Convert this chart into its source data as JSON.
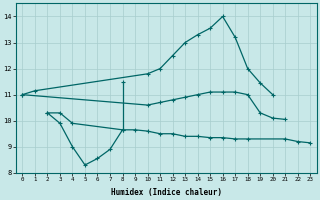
{
  "xlabel": "Humidex (Indice chaleur)",
  "x_values": [
    0,
    1,
    2,
    3,
    4,
    5,
    6,
    7,
    8,
    9,
    10,
    11,
    12,
    13,
    14,
    15,
    16,
    17,
    18,
    19,
    20,
    21,
    22,
    23
  ],
  "line1_x": [
    0,
    1,
    10,
    11,
    12,
    13,
    14,
    15,
    16,
    17,
    18,
    19,
    20
  ],
  "line1_y": [
    11.0,
    11.15,
    11.8,
    12.0,
    12.5,
    13.0,
    13.3,
    13.55,
    14.0,
    13.2,
    12.0,
    11.45,
    11.0
  ],
  "line2_x": [
    8
  ],
  "line2_y": [
    11.5
  ],
  "line3_x": [
    2,
    3,
    4,
    8,
    9,
    10,
    11,
    12,
    13,
    14,
    15,
    16,
    17,
    18,
    21,
    22,
    23
  ],
  "line3_y": [
    10.3,
    10.3,
    9.9,
    9.65,
    9.65,
    9.6,
    9.5,
    9.5,
    9.4,
    9.4,
    9.35,
    9.35,
    9.3,
    9.3,
    9.3,
    9.2,
    9.15
  ],
  "line4_x": [
    2,
    3,
    4,
    5,
    6,
    7,
    8
  ],
  "line4_y": [
    10.3,
    9.9,
    9.0,
    8.3,
    8.55,
    8.9,
    9.65
  ],
  "line5_x": [
    0,
    10,
    11,
    12,
    13,
    14,
    15,
    16,
    17,
    18,
    19,
    20,
    21
  ],
  "line5_y": [
    11.0,
    10.6,
    10.7,
    10.8,
    10.9,
    11.0,
    11.1,
    11.1,
    11.1,
    11.0,
    10.3,
    10.1,
    10.05
  ],
  "bg_color": "#c8e8e8",
  "line_color": "#006666",
  "grid_color": "#a8cece",
  "ylim": [
    8,
    14.5
  ],
  "xlim": [
    -0.5,
    23.5
  ],
  "yticks": [
    8,
    9,
    10,
    11,
    12,
    13,
    14
  ],
  "xticks": [
    0,
    1,
    2,
    3,
    4,
    5,
    6,
    7,
    8,
    9,
    10,
    11,
    12,
    13,
    14,
    15,
    16,
    17,
    18,
    19,
    20,
    21,
    22,
    23
  ]
}
